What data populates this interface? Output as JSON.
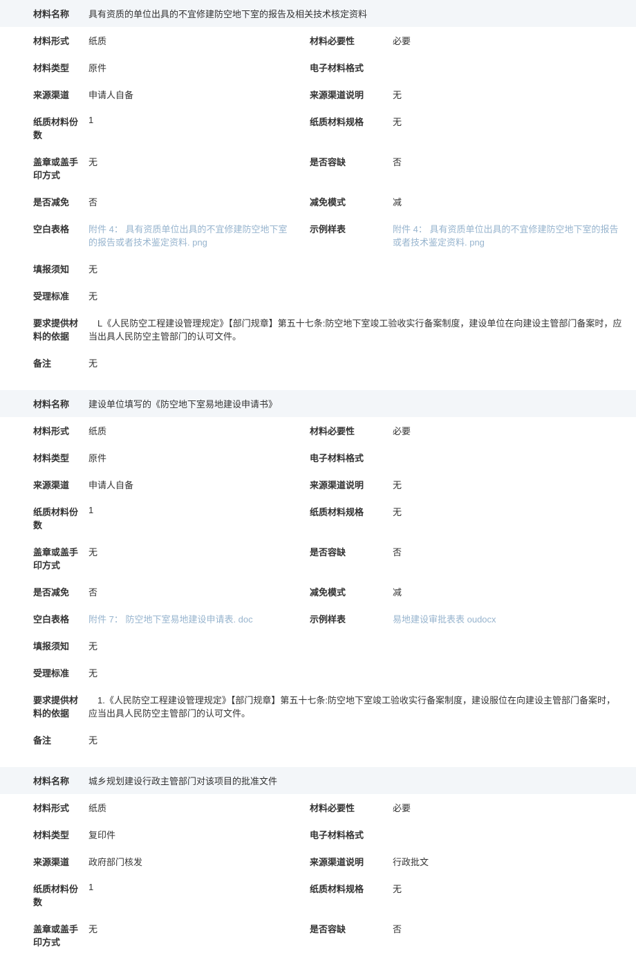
{
  "labels": {
    "material_name": "材料名称",
    "material_form": "材料形式",
    "material_necessity": "材料必要性",
    "material_type": "材料类型",
    "electronic_format": "电子材料格式",
    "source_channel": "来源渠道",
    "source_channel_desc": "来源渠道说明",
    "paper_copies": "纸质材料份数",
    "paper_spec": "纸质材料规格",
    "seal_method": "盖章或盖手印方式",
    "allow_missing": "是否容缺",
    "allow_exempt": "是否减免",
    "exempt_mode": "减免模式",
    "blank_form": "空白表格",
    "sample_form": "示例样表",
    "fill_notice": "填报须知",
    "accept_standard": "受理标准",
    "requirement_basis": "要求提供材料的依据",
    "remark": "备注"
  },
  "sections": [
    {
      "material_name": "具有资质的单位出具的不宜修建防空地下室的报告及相关技术核定资料",
      "material_form": "纸质",
      "material_necessity": "必要",
      "material_type": "原件",
      "electronic_format": "",
      "source_channel": "申请人自备",
      "source_channel_desc": "无",
      "paper_copies": "1",
      "paper_spec": "无",
      "seal_method": "无",
      "allow_missing": "否",
      "allow_exempt": "否",
      "exempt_mode": "减",
      "blank_form": "附件 4： 具有资质单位出具的不宜修建防空地下室的报告或者技术鉴定资料. png",
      "blank_form_link": true,
      "sample_form": "附件 4： 具有资质单位出具的不宜修建防空地下室的报告或者技术鉴定资料. png",
      "sample_form_link": true,
      "fill_notice": "无",
      "accept_standard": "无",
      "requirement_basis": "　L《人民防空工程建设管理规定》【部门规章】第五十七条:防空地下室竣工验收实行备案制度，建设单位在向建设主管部门备案时，应当出具人民防空主管部门的认可文件。",
      "remark": "无"
    },
    {
      "material_name": "建设单位填写的《防空地下室易地建设申请书》",
      "material_form": "纸质",
      "material_necessity": "必要",
      "material_type": "原件",
      "electronic_format": "",
      "source_channel": "申请人自备",
      "source_channel_desc": "无",
      "paper_copies": "1",
      "paper_spec": "无",
      "seal_method": "无",
      "allow_missing": "否",
      "allow_exempt": "否",
      "exempt_mode": "减",
      "blank_form": "附件 7： 防空地下室易地建设申请表. doc",
      "blank_form_link": true,
      "sample_form": "易地建设审批表表 oudocx",
      "sample_form_link": true,
      "fill_notice": "无",
      "accept_standard": "无",
      "requirement_basis": "　1.《人民防空工程建设管理规定》【部门规章】第五十七条:防空地下室竣工验收实行备案制度，建设服位在向建设主管部门备案时，应当出具人民防空主管部门的认可文件。",
      "remark": "无"
    },
    {
      "material_name": "城乡规划建设行政主管部门对该项目的批准文件",
      "material_form": "纸质",
      "material_necessity": "必要",
      "material_type": "复印件",
      "electronic_format": "",
      "source_channel": "政府部门核发",
      "source_channel_desc": "行政批文",
      "paper_copies": "1",
      "paper_spec": "无",
      "seal_method": "无",
      "allow_missing": "否",
      "partial": true
    }
  ],
  "styling": {
    "header_bg": "#f3f6f9",
    "link_color": "#97b4ce",
    "text_color": "#333333",
    "font_size": 13,
    "label_col_width": 128,
    "value_col_width": 320,
    "label2_col_width": 120
  }
}
